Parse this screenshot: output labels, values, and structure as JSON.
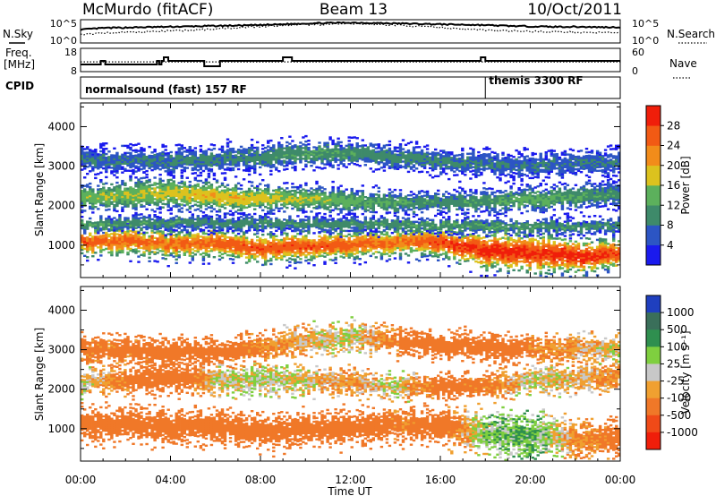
{
  "title": {
    "station": "McMurdo (fitACF)",
    "beam": "Beam 13",
    "date": "10/Oct/2011"
  },
  "left_labels": {
    "nsky": "N.Sky",
    "freq": "Freq.",
    "freq_unit": "[MHz]",
    "cpid": "CPID"
  },
  "right_labels": {
    "nsearch": "N.Search",
    "nave": "Nave"
  },
  "cpid_segments": [
    {
      "label": "normalsound (fast) 157 RF",
      "start_hour": 0,
      "end_hour": 18
    },
    {
      "label": "themis 3300 RF",
      "start_hour": 18,
      "end_hour": 24
    }
  ],
  "time_axis": {
    "label": "Time UT",
    "range_hours": [
      0,
      24
    ],
    "ticks": [
      "00:00",
      "04:00",
      "08:00",
      "12:00",
      "16:00",
      "20:00",
      "00:00"
    ]
  },
  "colors": {
    "power": [
      "#1a1aee",
      "#2c55c4",
      "#3e8a6a",
      "#5cb05c",
      "#dcc21e",
      "#f28c1a",
      "#f25a14",
      "#f01e0a"
    ],
    "velocity": [
      "#1f3fbf",
      "#3a6f5a",
      "#2f8f4f",
      "#7fcf3f",
      "#c8c8c8",
      "#f0a030",
      "#f07828",
      "#f04a18",
      "#f01e0a"
    ]
  },
  "chart_data": [
    {
      "type": "line",
      "panel": "noise",
      "y_ticks_left": [
        "10^5",
        "10^0"
      ],
      "y_ticks_right": [
        "10^5",
        "10^0"
      ],
      "series": [
        {
          "name": "N.Sky",
          "x": [
            0,
            1,
            2,
            3,
            4,
            5,
            6,
            7,
            8,
            9,
            10,
            11,
            12,
            13,
            14,
            15,
            16,
            17,
            18,
            19,
            20,
            21,
            22,
            23,
            24
          ],
          "y": [
            3.2,
            3.6,
            3.7,
            3.8,
            3.9,
            4.0,
            4.1,
            4.2,
            4.3,
            4.5,
            4.7,
            4.8,
            4.9,
            4.8,
            4.7,
            4.6,
            4.5,
            4.4,
            4.3,
            4.1,
            4.0,
            3.9,
            3.9,
            3.8,
            3.8
          ]
        },
        {
          "name": "N.Search",
          "x": [
            0,
            1,
            2,
            3,
            4,
            5,
            6,
            7,
            8,
            9,
            10,
            11,
            12,
            13,
            14,
            15,
            16,
            17,
            18,
            19,
            20,
            21,
            22,
            23,
            24
          ],
          "y": [
            2.0,
            2.4,
            2.6,
            2.7,
            2.9,
            3.1,
            3.4,
            3.7,
            4.0,
            4.2,
            4.4,
            4.5,
            4.6,
            4.5,
            4.3,
            4.0,
            3.7,
            3.4,
            3.1,
            2.9,
            2.8,
            2.7,
            2.6,
            2.5,
            2.5
          ]
        }
      ]
    },
    {
      "type": "line",
      "panel": "frequency",
      "y_ticks_left": [
        "18",
        "8"
      ],
      "y_ticks_right": [
        "60",
        "0"
      ],
      "series": [
        {
          "name": "Freq.",
          "step": true,
          "x": [
            0,
            0.9,
            1.1,
            3.3,
            3.4,
            3.5,
            3.6,
            3.7,
            3.9,
            5.5,
            6.2,
            9.0,
            9.4,
            17.4,
            17.8,
            18.0,
            24
          ],
          "y": [
            10,
            12,
            10,
            10,
            12,
            10,
            12,
            14,
            12,
            9,
            12,
            14,
            12,
            12,
            14,
            12,
            12
          ]
        },
        {
          "name": "Nave",
          "x": [
            0,
            24
          ],
          "y": [
            26,
            26
          ]
        }
      ]
    },
    {
      "type": "heatmap",
      "panel": "power",
      "xlabel": "",
      "ylabel": "Slant Range [km]",
      "ylim": [
        180,
        4600
      ],
      "y_ticks": [
        1000,
        2000,
        3000,
        4000
      ],
      "colorbar": {
        "label": "Power [dB]",
        "ticks": [
          4,
          8,
          12,
          16,
          20,
          24,
          28
        ],
        "range": [
          0,
          32
        ]
      },
      "bands": [
        {
          "x": [
            0,
            2,
            4,
            6,
            8,
            10,
            12,
            14,
            16,
            18,
            20,
            22,
            24
          ],
          "center": [
            1050,
            1100,
            1000,
            1050,
            900,
            950,
            1000,
            1050,
            1050,
            850,
            800,
            700,
            750
          ],
          "width": [
            260,
            300,
            280,
            300,
            300,
            300,
            300,
            280,
            300,
            380,
            420,
            350,
            300
          ],
          "peak": [
            27,
            25,
            25,
            26,
            27,
            27,
            26,
            24,
            28,
            30,
            29,
            30,
            28
          ]
        },
        {
          "x": [
            0,
            2,
            4,
            6,
            8,
            10,
            12,
            14,
            16,
            18,
            20,
            22,
            24
          ],
          "center": [
            2200,
            2250,
            2300,
            2200,
            2150,
            2150,
            2100,
            2050,
            2050,
            2100,
            2150,
            2200,
            2300
          ],
          "width": [
            260,
            300,
            320,
            300,
            260,
            250,
            240,
            220,
            220,
            240,
            240,
            260,
            260
          ],
          "peak": [
            15,
            16,
            18,
            20,
            18,
            16,
            14,
            12,
            10,
            12,
            14,
            12,
            10
          ]
        },
        {
          "x": [
            0,
            4,
            8,
            10,
            12,
            16,
            20,
            24
          ],
          "center": [
            3150,
            3100,
            3200,
            3300,
            3300,
            3100,
            3000,
            3100
          ],
          "width": [
            250,
            250,
            260,
            250,
            240,
            240,
            250,
            250
          ],
          "peak": [
            8,
            9,
            10,
            12,
            11,
            9,
            8,
            8
          ]
        },
        {
          "x": [
            0,
            6,
            12,
            18,
            24
          ],
          "center": [
            1500,
            1550,
            1500,
            1450,
            1450
          ],
          "width": [
            150,
            150,
            150,
            150,
            150
          ],
          "peak": [
            12,
            10,
            11,
            12,
            10
          ]
        }
      ]
    },
    {
      "type": "heatmap",
      "panel": "velocity",
      "xlabel": "Time UT",
      "ylabel": "Slant Range [km]",
      "ylim": [
        180,
        4600
      ],
      "y_ticks": [
        1000,
        2000,
        3000,
        4000
      ],
      "colorbar": {
        "label": "Velocity [m s⁻¹]",
        "ticks": [
          "1000",
          "500",
          "100",
          "25",
          "-25",
          "-100",
          "-500",
          "-1000"
        ]
      },
      "bands": [
        {
          "x": [
            0,
            2,
            4,
            6,
            8,
            10,
            12,
            14,
            16,
            18,
            20,
            22,
            24
          ],
          "center": [
            1050,
            1100,
            1000,
            1050,
            900,
            950,
            1000,
            1050,
            1050,
            850,
            800,
            700,
            750
          ],
          "width": [
            300,
            320,
            300,
            320,
            320,
            320,
            320,
            300,
            320,
            380,
            420,
            350,
            320
          ],
          "value": [
            -300,
            -250,
            -200,
            -200,
            -250,
            -300,
            -250,
            -150,
            -200,
            50,
            100,
            -100,
            -200
          ]
        },
        {
          "x": [
            0,
            2,
            4,
            6,
            8,
            10,
            12,
            14,
            16,
            18,
            20,
            22,
            24
          ],
          "center": [
            2150,
            2200,
            2300,
            2200,
            2200,
            2200,
            2150,
            2050,
            2050,
            2100,
            2200,
            2250,
            2300
          ],
          "width": [
            220,
            240,
            300,
            280,
            260,
            250,
            240,
            220,
            220,
            240,
            240,
            260,
            260
          ],
          "value": [
            0,
            -150,
            -300,
            0,
            10,
            -20,
            -100,
            0,
            -200,
            -150,
            0,
            -50,
            -100
          ]
        },
        {
          "x": [
            0,
            6,
            10,
            12,
            16,
            20,
            24
          ],
          "center": [
            3000,
            2900,
            3200,
            3300,
            3100,
            3000,
            3000
          ],
          "width": [
            260,
            260,
            260,
            250,
            250,
            250,
            250
          ],
          "value": [
            -150,
            -200,
            -50,
            0,
            -300,
            -150,
            0
          ]
        }
      ]
    }
  ]
}
